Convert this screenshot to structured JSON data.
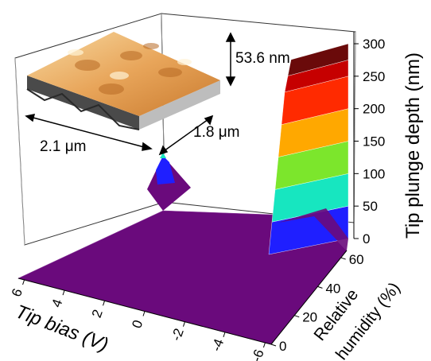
{
  "chart_data": {
    "type": "surface",
    "x_axis": {
      "label": "Tip bias (V)",
      "ticks": [
        "6",
        "4",
        "2",
        "0",
        "-2",
        "-4",
        "-6"
      ],
      "range": [
        -6,
        6
      ]
    },
    "y_axis": {
      "label_line1": "Relative",
      "label_line2": "humidity (%)",
      "ticks": [
        "0",
        "20",
        "40",
        "60"
      ],
      "range": [
        0,
        65
      ]
    },
    "z_axis": {
      "label": "Tip plunge depth (nm)",
      "ticks": [
        "0",
        "50",
        "100",
        "150",
        "200",
        "250",
        "300"
      ],
      "range": [
        0,
        300
      ]
    },
    "colorbands": [
      "#6a0a7c",
      "#1f1fff",
      "#17e6c0",
      "#7ce62c",
      "#ffa800",
      "#ff2a00",
      "#c60000",
      "#6a0a0a"
    ],
    "surface_points": [
      {
        "bias_V": 6,
        "humidity_pct": 0,
        "depth_nm": 0
      },
      {
        "bias_V": 6,
        "humidity_pct": 60,
        "depth_nm": 2
      },
      {
        "bias_V": 0,
        "humidity_pct": 0,
        "depth_nm": 0
      },
      {
        "bias_V": 0,
        "humidity_pct": 60,
        "depth_nm": 8
      },
      {
        "bias_V": -6,
        "humidity_pct": 0,
        "depth_nm": 0
      },
      {
        "bias_V": -6,
        "humidity_pct": 20,
        "depth_nm": 3
      },
      {
        "bias_V": -6,
        "humidity_pct": 40,
        "depth_nm": 20
      },
      {
        "bias_V": -6,
        "humidity_pct": 50,
        "depth_nm": 60
      },
      {
        "bias_V": -6,
        "humidity_pct": 60,
        "depth_nm": 200
      },
      {
        "bias_V": -6,
        "humidity_pct": 65,
        "depth_nm": 300
      },
      {
        "bias_V": 6,
        "humidity_pct": 65,
        "depth_nm": 140
      }
    ],
    "inset": {
      "depth_label": "53.6 nm",
      "width_label": "2.1 μm",
      "length_label": "1.8 μm"
    }
  }
}
